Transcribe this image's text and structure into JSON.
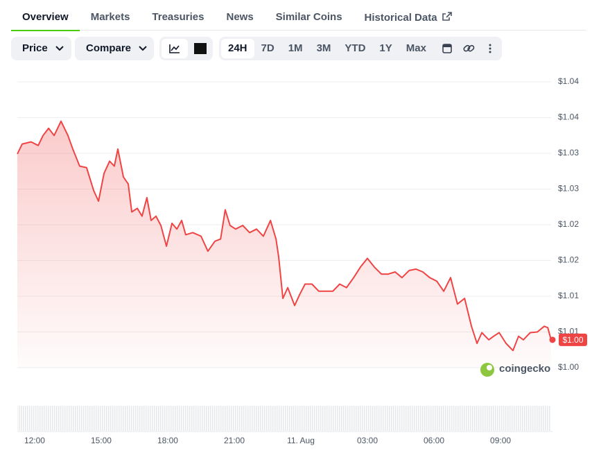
{
  "tabs": [
    "Overview",
    "Markets",
    "Treasuries",
    "News",
    "Similar Coins",
    "Historical Data"
  ],
  "active_tab": 0,
  "controls": {
    "price": "Price",
    "compare": "Compare"
  },
  "ranges": [
    "24H",
    "7D",
    "1M",
    "3M",
    "YTD",
    "1Y",
    "Max"
  ],
  "active_range": 0,
  "watermark": "coingecko",
  "chart_data": {
    "type": "line",
    "color": "#ef4444",
    "current_price": "$1.00",
    "xlim": [
      -0.78,
      23.28
    ],
    "xticks": [
      {
        "value": 0,
        "label": "12:00"
      },
      {
        "value": 3,
        "label": "15:00"
      },
      {
        "value": 6,
        "label": "18:00"
      },
      {
        "value": 9,
        "label": "21:00"
      },
      {
        "value": 12,
        "label": "11. Aug"
      },
      {
        "value": 15,
        "label": "03:00"
      },
      {
        "value": 18,
        "label": "06:00"
      },
      {
        "value": 21,
        "label": "09:00"
      }
    ],
    "ylim": [
      1.0,
      1.04
    ],
    "yticks": [
      {
        "value": 1.0,
        "label": "$1.00"
      },
      {
        "value": 1.005,
        "label": "$1.01"
      },
      {
        "value": 1.01,
        "label": "$1.01"
      },
      {
        "value": 1.015,
        "label": "$1.02"
      },
      {
        "value": 1.02,
        "label": "$1.02"
      },
      {
        "value": 1.025,
        "label": "$1.03"
      },
      {
        "value": 1.03,
        "label": "$1.03"
      },
      {
        "value": 1.035,
        "label": "$1.04"
      },
      {
        "value": 1.04,
        "label": "$1.04"
      }
    ],
    "grid": true,
    "x": [
      -0.78,
      -0.56,
      -0.16,
      0.16,
      0.38,
      0.63,
      0.88,
      1.19,
      1.5,
      1.72,
      2.03,
      2.34,
      2.66,
      2.88,
      3.13,
      3.38,
      3.59,
      3.75,
      4.0,
      4.22,
      4.38,
      4.63,
      4.84,
      5.06,
      5.25,
      5.47,
      5.69,
      5.94,
      6.19,
      6.41,
      6.63,
      6.81,
      7.13,
      7.5,
      7.81,
      8.13,
      8.38,
      8.59,
      8.81,
      9.06,
      9.38,
      9.69,
      10.0,
      10.31,
      10.63,
      10.88,
      11.0,
      11.19,
      11.41,
      11.72,
      11.94,
      12.19,
      12.5,
      12.81,
      13.13,
      13.44,
      13.75,
      14.06,
      14.38,
      14.69,
      15.0,
      15.31,
      15.63,
      15.94,
      16.25,
      16.56,
      16.88,
      17.19,
      17.5,
      17.81,
      18.13,
      18.44,
      18.75,
      19.06,
      19.38,
      19.69,
      19.94,
      20.16,
      20.47,
      20.69,
      20.94,
      21.25,
      21.56,
      21.81,
      22.03,
      22.34,
      22.66,
      22.97,
      23.13,
      23.28
    ],
    "values": [
      1.0299,
      1.0313,
      1.0316,
      1.0311,
      1.0325,
      1.0335,
      1.0325,
      1.0345,
      1.0325,
      1.0306,
      1.0282,
      1.028,
      1.0248,
      1.0233,
      1.0272,
      1.0289,
      1.0282,
      1.0306,
      1.0267,
      1.0257,
      1.0218,
      1.0223,
      1.0212,
      1.0238,
      1.0206,
      1.0212,
      1.0199,
      1.017,
      1.0202,
      1.0194,
      1.0206,
      1.0186,
      1.0189,
      1.0184,
      1.0163,
      1.0177,
      1.018,
      1.0221,
      1.0199,
      1.0194,
      1.0199,
      1.0189,
      1.0194,
      1.0184,
      1.0206,
      1.018,
      1.0155,
      1.0097,
      1.0112,
      1.0087,
      1.0102,
      1.0117,
      1.0117,
      1.0107,
      1.0107,
      1.0107,
      1.0117,
      1.0112,
      1.0126,
      1.0141,
      1.0153,
      1.0141,
      1.0131,
      1.0131,
      1.0134,
      1.0126,
      1.0136,
      1.0138,
      1.0134,
      1.0126,
      1.0121,
      1.0107,
      1.0126,
      1.0089,
      1.0097,
      1.0058,
      1.0034,
      1.0049,
      1.0039,
      1.0044,
      1.0049,
      1.0034,
      1.0024,
      1.0044,
      1.0039,
      1.0049,
      1.005,
      1.0058,
      1.0056,
      1.0039
    ]
  }
}
